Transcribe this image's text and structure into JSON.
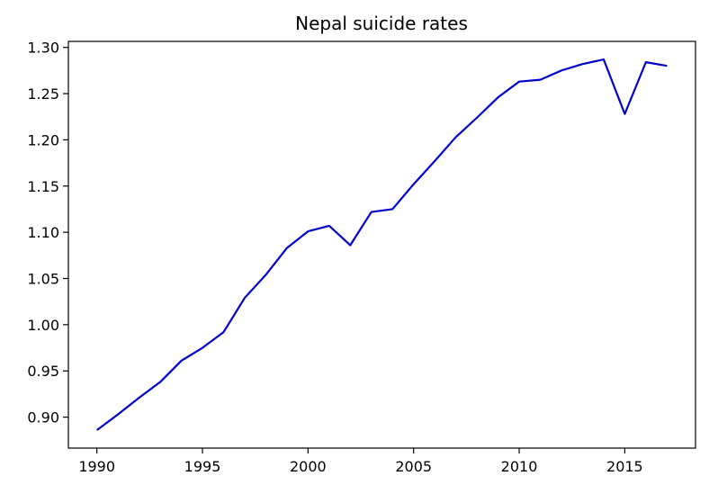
{
  "chart_data": {
    "type": "line",
    "title": "Nepal suicide rates",
    "xlabel": "",
    "ylabel": "",
    "xlim": [
      1988.65,
      2018.35
    ],
    "ylim": [
      0.8665,
      1.3065
    ],
    "xticks": [
      "1990",
      "1995",
      "2000",
      "2005",
      "2010",
      "2015"
    ],
    "yticks": [
      "0.90",
      "0.95",
      "1.00",
      "1.05",
      "1.10",
      "1.15",
      "1.20",
      "1.25",
      "1.30"
    ],
    "grid": false,
    "legend": "none",
    "series": [
      {
        "color": "#0000cd",
        "x": [
          1990,
          1991,
          1992,
          1993,
          1994,
          1995,
          1996,
          1997,
          1998,
          1999,
          2000,
          2001,
          2002,
          2003,
          2004,
          2005,
          2006,
          2007,
          2008,
          2009,
          2010,
          2011,
          2012,
          2013,
          2014,
          2015,
          2016,
          2017
        ],
        "y": [
          0.886,
          0.903,
          0.921,
          0.938,
          0.961,
          0.975,
          0.992,
          1.029,
          1.054,
          1.083,
          1.101,
          1.107,
          1.086,
          1.122,
          1.125,
          1.152,
          1.177,
          1.203,
          1.224,
          1.246,
          1.263,
          1.265,
          1.275,
          1.282,
          1.287,
          1.228,
          1.284,
          1.28
        ]
      }
    ]
  }
}
